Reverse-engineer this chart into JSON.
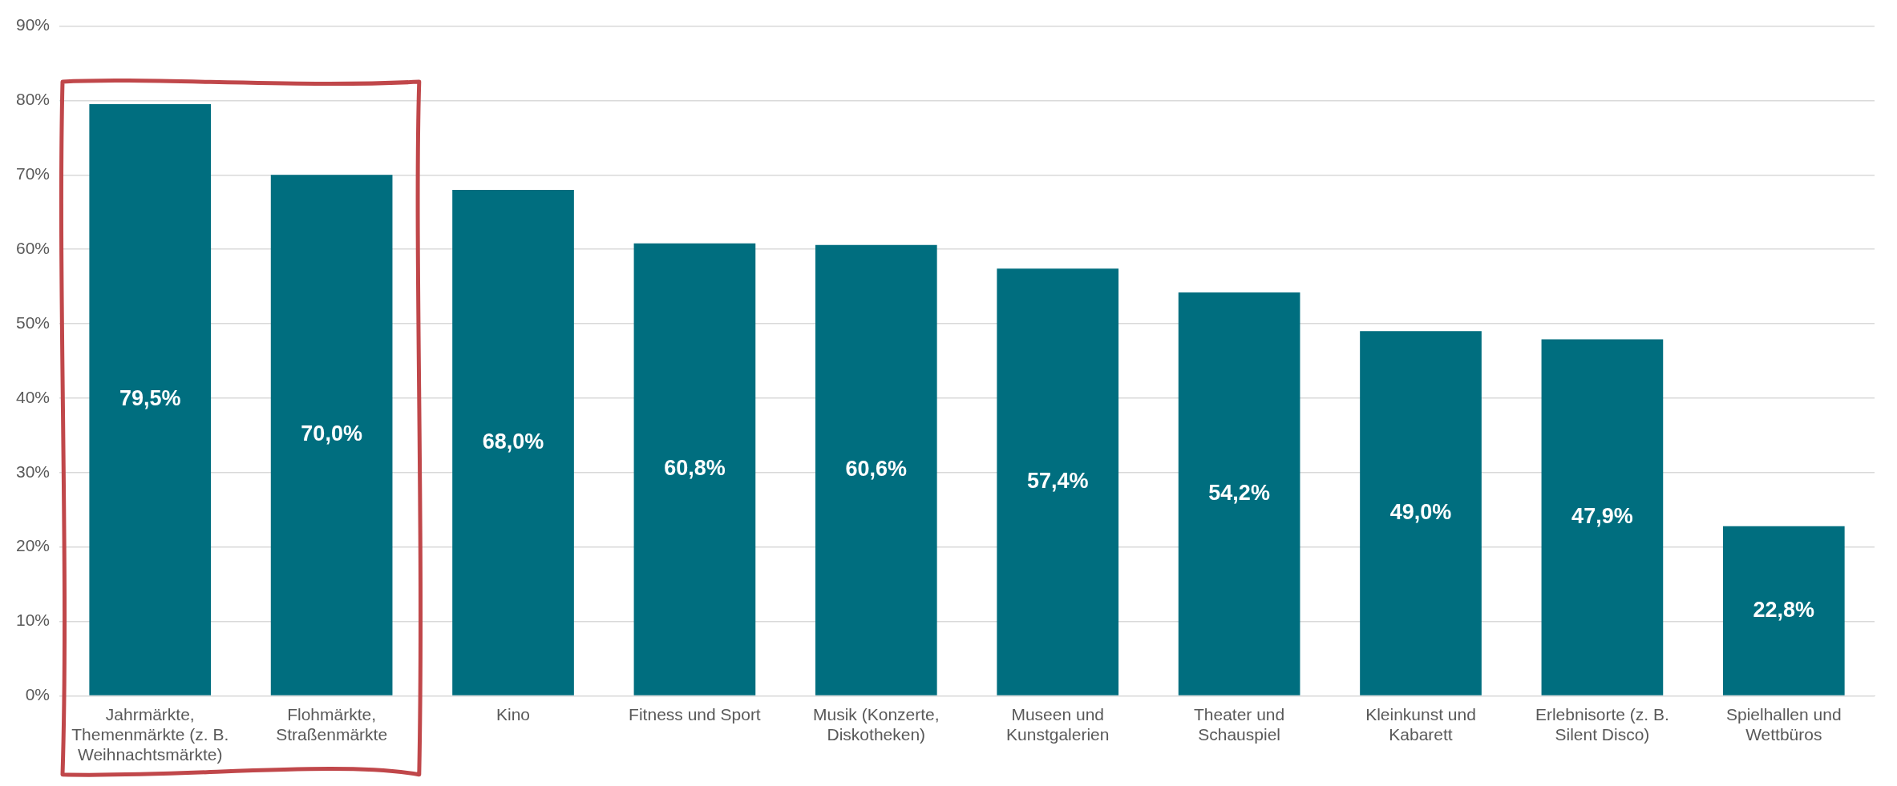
{
  "chart_data": {
    "type": "bar",
    "categories": [
      "Jahrmärkte, Themenmärkte (z. B. Weihnachtsmärkte)",
      "Flohmärkte, Straßenmärkte",
      "Kino",
      "Fitness und Sport",
      "Musik (Konzerte, Diskotheken)",
      "Museen und Kunstgalerien",
      "Theater und Schauspiel",
      "Kleinkunst und Kabarett",
      "Erlebnisorte (z. B. Silent Disco)",
      "Spielhallen und Wettbüros"
    ],
    "values": [
      79.5,
      70.0,
      68.0,
      60.8,
      60.6,
      57.4,
      54.2,
      49.0,
      47.9,
      22.8
    ],
    "value_labels": [
      "79,5%",
      "70,0%",
      "68,0%",
      "60,8%",
      "60,6%",
      "57,4%",
      "54,2%",
      "49,0%",
      "47,9%",
      "22,8%"
    ],
    "color": "#006e7f",
    "ylim": [
      0,
      90
    ],
    "yticks": [
      {
        "value": 0,
        "label": "0%"
      },
      {
        "value": 10,
        "label": "10%"
      },
      {
        "value": 20,
        "label": "20%"
      },
      {
        "value": 30,
        "label": "30%"
      },
      {
        "value": 40,
        "label": "40%"
      },
      {
        "value": 50,
        "label": "50%"
      },
      {
        "value": 60,
        "label": "60%"
      },
      {
        "value": 70,
        "label": "70%"
      },
      {
        "value": 80,
        "label": "80%"
      },
      {
        "value": 90,
        "label": "90%"
      }
    ],
    "grid": "y",
    "legend": false
  }
}
